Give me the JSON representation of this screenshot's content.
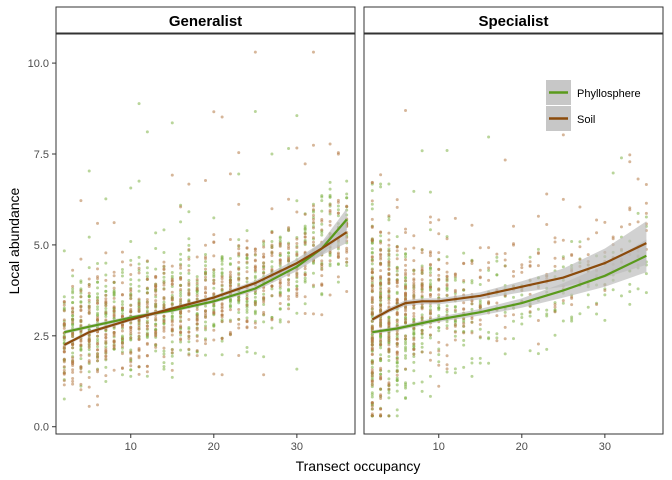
{
  "chart_data": {
    "type": "scatter",
    "xlabel": "Transect occupancy",
    "ylabel": "Local abundance",
    "xlim": [
      1,
      37
    ],
    "ylim": [
      -0.2,
      10.8
    ],
    "x_ticks": [
      10,
      20,
      30
    ],
    "y_ticks": [
      0.0,
      2.5,
      5.0,
      7.5,
      10.0
    ],
    "y_tick_labels": [
      "0.0",
      "2.5",
      "5.0",
      "7.5",
      "10.0"
    ],
    "grid": false,
    "legend_placement": "top-right inside Specialist panel",
    "colors": {
      "phyllosphere": "#5a9a1c",
      "soil": "#8b4b0c",
      "phyllosphere_points": "#7fb347",
      "soil_points": "#b57a45",
      "ribbon": "#bdbdbd",
      "strip_bg": "#ffffff",
      "panel_border": "#333333"
    },
    "legend": [
      {
        "key": "phyllosphere",
        "label": "Phyllosphere"
      },
      {
        "key": "soil",
        "label": "Soil"
      }
    ],
    "panels": [
      {
        "title": "Generalist",
        "point_x_range": [
          2,
          36
        ],
        "series": [
          {
            "key": "phyllosphere",
            "x": [
              2,
              5,
              10,
              15,
              20,
              25,
              30,
              33,
              36
            ],
            "y": [
              2.6,
              2.75,
              3.0,
              3.2,
              3.45,
              3.8,
              4.4,
              4.9,
              5.7
            ],
            "ci": [
              0.05,
              0.05,
              0.05,
              0.05,
              0.05,
              0.07,
              0.12,
              0.18,
              0.3
            ]
          },
          {
            "key": "soil",
            "x": [
              2,
              5,
              10,
              15,
              20,
              25,
              30,
              33,
              36
            ],
            "y": [
              2.25,
              2.6,
              2.95,
              3.25,
              3.55,
              3.95,
              4.5,
              4.9,
              5.35
            ],
            "ci": [
              0.05,
              0.05,
              0.05,
              0.05,
              0.05,
              0.07,
              0.12,
              0.18,
              0.3
            ]
          }
        ]
      },
      {
        "title": "Specialist",
        "point_x_range": [
          2,
          35
        ],
        "series": [
          {
            "key": "phyllosphere",
            "x": [
              2,
              5,
              10,
              15,
              20,
              25,
              30,
              35
            ],
            "y": [
              2.6,
              2.7,
              2.95,
              3.15,
              3.4,
              3.75,
              4.15,
              4.7
            ],
            "ci": [
              0.05,
              0.06,
              0.07,
              0.09,
              0.13,
              0.2,
              0.3,
              0.45
            ]
          },
          {
            "key": "soil",
            "x": [
              2,
              4,
              6,
              8,
              10,
              15,
              20,
              25,
              30,
              35
            ],
            "y": [
              2.95,
              3.2,
              3.4,
              3.45,
              3.45,
              3.6,
              3.85,
              4.1,
              4.5,
              5.05
            ],
            "ci": [
              0.06,
              0.07,
              0.08,
              0.08,
              0.08,
              0.1,
              0.15,
              0.25,
              0.4,
              0.6
            ]
          }
        ]
      }
    ]
  }
}
